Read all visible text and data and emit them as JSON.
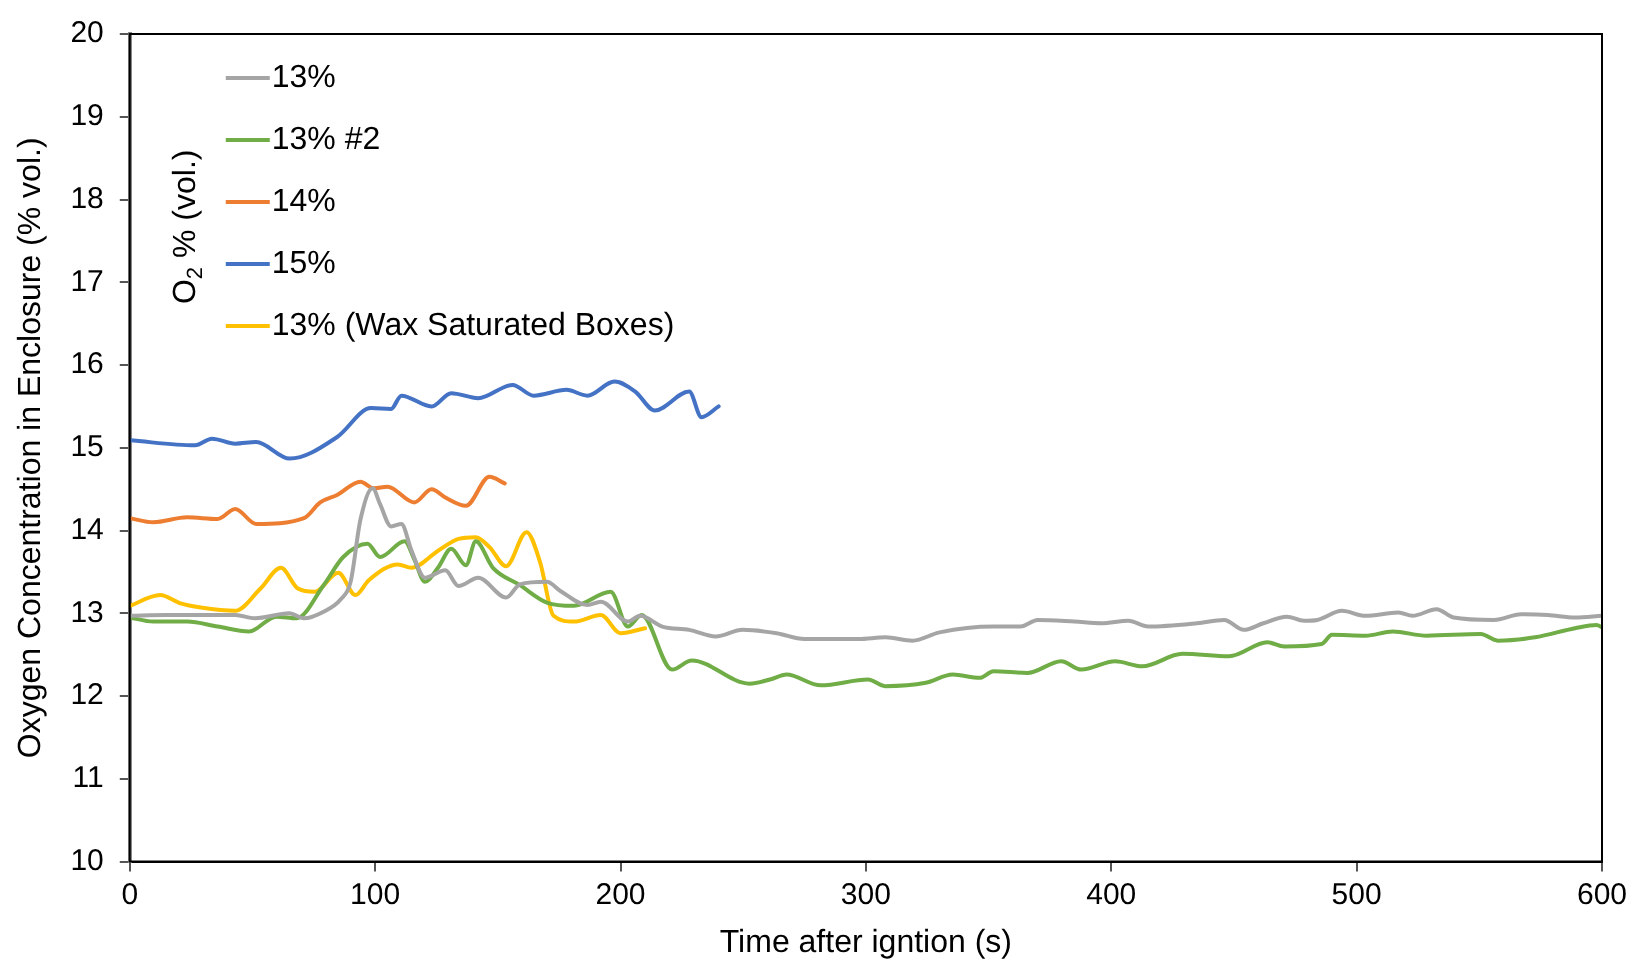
{
  "chart_data": {
    "type": "line",
    "xlabel": "Time after igntion (s)",
    "ylabel": "Oxygen Concentration in Enclosure (% vol.)",
    "legend_title": "O$_{2}$ % (vol.)",
    "legend": "top left",
    "grid": false,
    "marker": "none",
    "line_style": "solid",
    "xlim": [
      0,
      600
    ],
    "xticks": [
      0,
      100,
      200,
      300,
      400,
      500,
      600
    ],
    "ylim": [
      10,
      20
    ],
    "yticks": [
      10,
      11,
      12,
      13,
      14,
      15,
      16,
      17,
      18,
      19,
      20
    ],
    "series": [
      {
        "name": "13%",
        "color": "#a5a5a5",
        "x": [
          0,
          15,
          43,
          51,
          65,
          71,
          79,
          86,
          90,
          94,
          99,
          102,
          106.5,
          110.7,
          114.8,
          120.3,
          128.6,
          134,
          142,
          153.4,
          159,
          170,
          175.5,
          186.5,
          192,
          203,
          208,
          217,
          228,
          238.8,
          249.8,
          263.6,
          274.9,
          297,
          308,
          319,
          330,
          352,
          363,
          370,
          385,
          396,
          407,
          415,
          435,
          446,
          454,
          462,
          471.6,
          478.5,
          484,
          494,
          503.5,
          517,
          522.8,
          532.6,
          539.5,
          556,
          567,
          578,
          589,
          600
        ],
        "values": [
          12.97,
          12.98,
          12.98,
          12.94,
          13.0,
          12.94,
          13.02,
          13.17,
          13.38,
          14.13,
          14.51,
          14.32,
          14.05,
          14.08,
          13.76,
          13.43,
          13.52,
          13.33,
          13.43,
          13.19,
          13.35,
          13.38,
          13.27,
          13.1,
          13.14,
          12.9,
          12.97,
          12.84,
          12.8,
          12.72,
          12.8,
          12.76,
          12.69,
          12.69,
          12.71,
          12.67,
          12.77,
          12.84,
          12.84,
          12.92,
          12.9,
          12.88,
          12.91,
          12.84,
          12.88,
          12.92,
          12.8,
          12.88,
          12.96,
          12.91,
          12.92,
          13.03,
          12.97,
          13.01,
          12.97,
          13.05,
          12.95,
          12.92,
          12.99,
          12.98,
          12.95,
          12.97
        ]
      },
      {
        "name": "13% #2",
        "color": "#70ad47",
        "x": [
          0,
          9.6,
          23.4,
          35.8,
          48.6,
          59.7,
          68,
          79,
          87,
          96.9,
          102,
          112,
          116,
          120.3,
          125.6,
          131,
          137,
          141,
          148,
          159,
          170,
          181,
          196,
          203,
          208.6,
          221,
          229,
          252.6,
          260.9,
          267.7,
          281.6,
          300.9,
          307.8,
          324.4,
          335.4,
          346.4,
          352,
          365.8,
          379.6,
          387.8,
          401.6,
          412.6,
          429,
          448,
          463.6,
          470.5,
          485.7,
          490,
          503.6,
          514.7,
          528.5,
          550.6,
          557.5,
          572.7,
          589,
          597.8,
          600
        ],
        "values": [
          12.95,
          12.9,
          12.9,
          12.84,
          12.78,
          12.96,
          12.94,
          13.34,
          13.68,
          13.84,
          13.68,
          13.87,
          13.65,
          13.38,
          13.55,
          13.78,
          13.58,
          13.87,
          13.55,
          13.34,
          13.13,
          13.09,
          13.26,
          12.84,
          12.98,
          12.32,
          12.43,
          12.15,
          12.2,
          12.26,
          12.13,
          12.2,
          12.12,
          12.16,
          12.26,
          12.22,
          12.3,
          12.28,
          12.42,
          12.32,
          12.42,
          12.36,
          12.51,
          12.48,
          12.65,
          12.6,
          12.63,
          12.74,
          12.73,
          12.78,
          12.73,
          12.75,
          12.67,
          12.71,
          12.82,
          12.86,
          12.83
        ]
      },
      {
        "name": "14%",
        "color": "#ed7d31",
        "x": [
          0,
          9.6,
          23.4,
          35.8,
          43,
          51.5,
          71,
          77.6,
          84.5,
          94,
          99.5,
          105,
          116,
          123,
          128.6,
          137,
          146.6,
          152.8
        ],
        "values": [
          14.15,
          14.1,
          14.16,
          14.14,
          14.26,
          14.08,
          14.15,
          14.34,
          14.43,
          14.59,
          14.51,
          14.53,
          14.34,
          14.5,
          14.4,
          14.3,
          14.65,
          14.57
        ]
      },
      {
        "name": "15%",
        "color": "#4472c4",
        "x": [
          0,
          26.6,
          33.5,
          43,
          51.5,
          65.2,
          84.5,
          98.3,
          106.5,
          110.7,
          123,
          131,
          142,
          156,
          164.6,
          178,
          186.5,
          197.5,
          206,
          214,
          228,
          233,
          240
        ],
        "values": [
          15.09,
          15.03,
          15.11,
          15.05,
          15.07,
          14.87,
          15.13,
          15.48,
          15.47,
          15.63,
          15.5,
          15.66,
          15.6,
          15.76,
          15.63,
          15.7,
          15.63,
          15.8,
          15.68,
          15.45,
          15.68,
          15.37,
          15.5
        ]
      },
      {
        "name": "13% (Wax Saturated Boxes)",
        "color": "#ffc000",
        "x": [
          0,
          12.4,
          20.7,
          29,
          43,
          53.3,
          61.6,
          68.5,
          75.4,
          85,
          92,
          97.4,
          109.3,
          114.8,
          125.8,
          134,
          141,
          146.6,
          153.4,
          161.7,
          167.2,
          172.7,
          181,
          192,
          200,
          210
        ],
        "values": [
          13.09,
          13.22,
          13.12,
          13.07,
          13.03,
          13.3,
          13.55,
          13.3,
          13.26,
          13.49,
          13.22,
          13.4,
          13.59,
          13.55,
          13.76,
          13.9,
          13.92,
          13.8,
          13.57,
          13.98,
          13.62,
          12.97,
          12.9,
          12.98,
          12.76,
          12.82
        ]
      }
    ]
  }
}
